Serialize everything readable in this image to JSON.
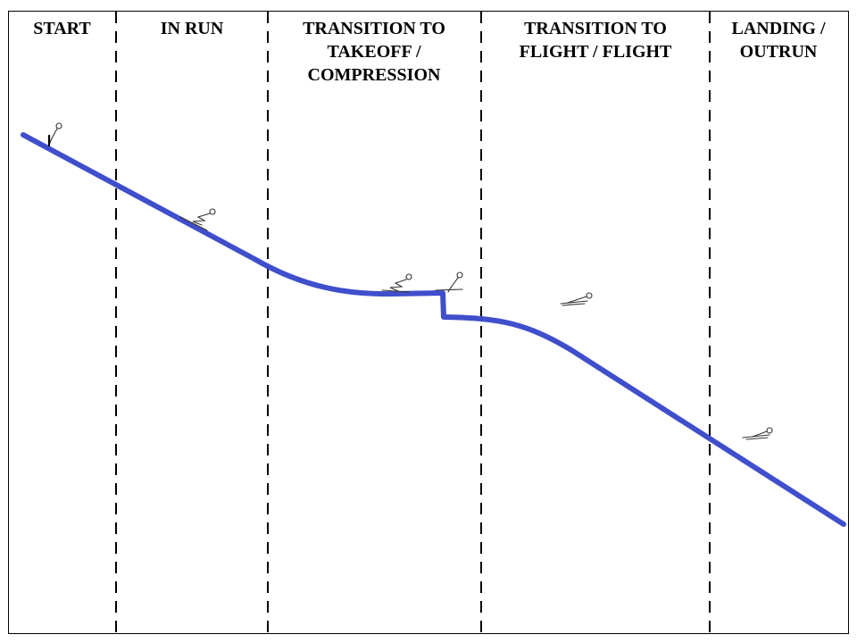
{
  "stages": [
    {
      "lines": [
        "START"
      ]
    },
    {
      "lines": [
        "IN RUN"
      ]
    },
    {
      "lines": [
        "TRANSITION TO",
        "TAKEOFF /",
        "COMPRESSION"
      ]
    },
    {
      "lines": [
        "TRANSITION TO",
        "FLIGHT / FLIGHT"
      ]
    },
    {
      "lines": [
        "LANDING /",
        "OUTRUN"
      ]
    }
  ],
  "colors": {
    "profile": "#3f4fcc",
    "divider": "#000000",
    "frame": "#000000",
    "skier": "#333333"
  },
  "icons": {
    "skier": "ski-jumper-icon"
  }
}
